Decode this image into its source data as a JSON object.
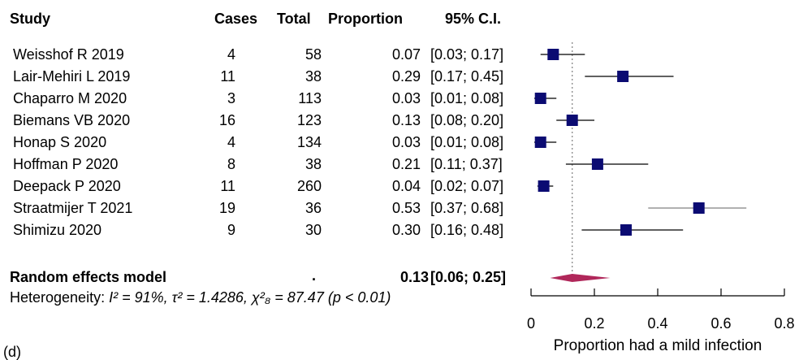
{
  "chart_data": {
    "type": "forest",
    "columns": [
      "Study",
      "Cases",
      "Total",
      "Proportion",
      "95% C.I."
    ],
    "studies": [
      {
        "study": "Weisshof R  2019",
        "cases": "4",
        "total": "58",
        "proportion_label": "0.07",
        "ci_label": "[0.03; 0.17]",
        "est": 0.07,
        "lo": 0.03,
        "hi": 0.17
      },
      {
        "study": "Lair-Mehiri L 2019",
        "cases": "11",
        "total": "38",
        "proportion_label": "0.29",
        "ci_label": "[0.17; 0.45]",
        "est": 0.29,
        "lo": 0.17,
        "hi": 0.45
      },
      {
        "study": "Chaparro M  2020",
        "cases": "3",
        "total": "113",
        "proportion_label": "0.03",
        "ci_label": "[0.01; 0.08]",
        "est": 0.03,
        "lo": 0.01,
        "hi": 0.08
      },
      {
        "study": "Biemans VB  2020",
        "cases": "16",
        "total": "123",
        "proportion_label": "0.13",
        "ci_label": "[0.08; 0.20]",
        "est": 0.13,
        "lo": 0.08,
        "hi": 0.2
      },
      {
        "study": "Honap S 2020",
        "cases": "4",
        "total": "134",
        "proportion_label": "0.03",
        "ci_label": "[0.01; 0.08]",
        "est": 0.03,
        "lo": 0.01,
        "hi": 0.08
      },
      {
        "study": "Hoffman P 2020",
        "cases": "8",
        "total": "38",
        "proportion_label": "0.21",
        "ci_label": "[0.11; 0.37]",
        "est": 0.21,
        "lo": 0.11,
        "hi": 0.37
      },
      {
        "study": "Deepack P 2020",
        "cases": "11",
        "total": "260",
        "proportion_label": "0.04",
        "ci_label": "[0.02; 0.07]",
        "est": 0.04,
        "lo": 0.02,
        "hi": 0.07
      },
      {
        "study": "Straatmijer T 2021",
        "cases": "19",
        "total": "36",
        "proportion_label": "0.53",
        "ci_label": "[0.37; 0.68]",
        "est": 0.53,
        "lo": 0.37,
        "hi": 0.68
      },
      {
        "study": "Shimizu  2020",
        "cases": "9",
        "total": "30",
        "proportion_label": "0.30",
        "ci_label": "[0.16; 0.48]",
        "est": 0.3,
        "lo": 0.16,
        "hi": 0.48
      }
    ],
    "summary": {
      "label": "Random effects model",
      "total": ".",
      "proportion_label": "0.13",
      "ci_label": "[0.06; 0.25]",
      "est": 0.13,
      "lo": 0.06,
      "hi": 0.25
    },
    "heterogeneity_prefix": "Heterogeneity: ",
    "heterogeneity_text": "I² = 91%, τ² = 1.4286, χ²₈ = 87.47 (p < 0.01)",
    "xlim": [
      0,
      0.8
    ],
    "xticks": [
      0,
      0.2,
      0.4,
      0.6,
      0.8
    ],
    "xtick_labels": [
      "0",
      "0.2",
      "0.4",
      "0.6",
      "0.8"
    ],
    "xlabel": "Proportion had a mild infection",
    "reference_line": 0.13,
    "footer_label": "(d)",
    "colors": {
      "marker": "#0b0b72",
      "ci_line_dark": "#000000",
      "ci_line_light": "#808080",
      "diamond": "#b0275a",
      "reference": "#888888"
    }
  }
}
